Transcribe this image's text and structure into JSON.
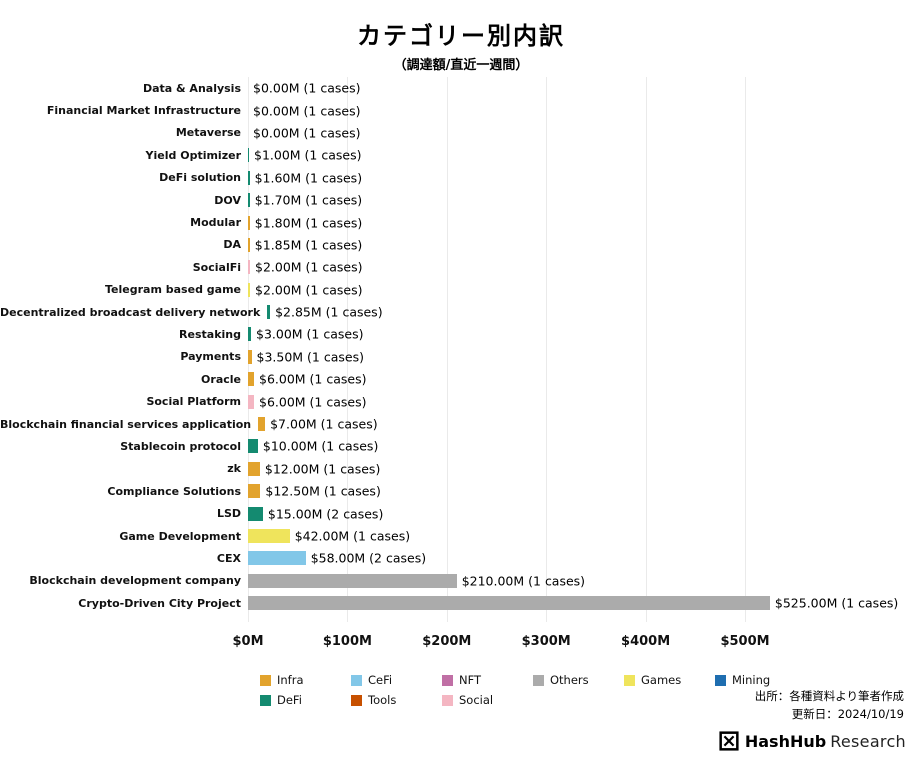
{
  "chart_data": {
    "type": "bar",
    "orientation": "horizontal",
    "title": "カテゴリー別内訳",
    "subtitle": "（調達額/直近一週間）",
    "value_unit": "$M",
    "xlim": [
      0,
      560
    ],
    "grid": true,
    "legend_position": "bottom",
    "xticks": [
      {
        "label": "$0M",
        "value": 0
      },
      {
        "label": "$100M",
        "value": 100
      },
      {
        "label": "$200M",
        "value": 200
      },
      {
        "label": "$300M",
        "value": 300
      },
      {
        "label": "$400M",
        "value": 400
      },
      {
        "label": "$500M",
        "value": 500
      }
    ],
    "rows": [
      {
        "category": "Data & Analysis",
        "value": 0.0,
        "cases": 1,
        "group": "Others",
        "label": "$0.00M (1 cases)"
      },
      {
        "category": "Financial Market Infrastructure",
        "value": 0.0,
        "cases": 1,
        "group": "Others",
        "label": "$0.00M (1 cases)"
      },
      {
        "category": "Metaverse",
        "value": 0.0,
        "cases": 1,
        "group": "Others",
        "label": "$0.00M (1 cases)"
      },
      {
        "category": "Yield Optimizer",
        "value": 1.0,
        "cases": 1,
        "group": "DeFi",
        "label": "$1.00M (1 cases)"
      },
      {
        "category": "DeFi solution",
        "value": 1.6,
        "cases": 1,
        "group": "DeFi",
        "label": "$1.60M (1 cases)"
      },
      {
        "category": "DOV",
        "value": 1.7,
        "cases": 1,
        "group": "DeFi",
        "label": "$1.70M (1 cases)"
      },
      {
        "category": "Modular",
        "value": 1.8,
        "cases": 1,
        "group": "Infra",
        "label": "$1.80M (1 cases)"
      },
      {
        "category": "DA",
        "value": 1.85,
        "cases": 1,
        "group": "Infra",
        "label": "$1.85M (1 cases)"
      },
      {
        "category": "SocialFi",
        "value": 2.0,
        "cases": 1,
        "group": "Social",
        "label": "$2.00M (1 cases)"
      },
      {
        "category": "Telegram based game",
        "value": 2.0,
        "cases": 1,
        "group": "Games",
        "label": "$2.00M (1 cases)"
      },
      {
        "category": "Decentralized broadcast delivery network",
        "value": 2.85,
        "cases": 1,
        "group": "DeFi",
        "label": "$2.85M (1 cases)"
      },
      {
        "category": "Restaking",
        "value": 3.0,
        "cases": 1,
        "group": "DeFi",
        "label": "$3.00M (1 cases)"
      },
      {
        "category": "Payments",
        "value": 3.5,
        "cases": 1,
        "group": "Infra",
        "label": "$3.50M (1 cases)"
      },
      {
        "category": "Oracle",
        "value": 6.0,
        "cases": 1,
        "group": "Infra",
        "label": "$6.00M (1 cases)"
      },
      {
        "category": "Social Platform",
        "value": 6.0,
        "cases": 1,
        "group": "Social",
        "label": "$6.00M (1 cases)"
      },
      {
        "category": "Blockchain financial services application",
        "value": 7.0,
        "cases": 1,
        "group": "Infra",
        "label": "$7.00M (1 cases)"
      },
      {
        "category": "Stablecoin protocol",
        "value": 10.0,
        "cases": 1,
        "group": "DeFi",
        "label": "$10.00M (1 cases)"
      },
      {
        "category": "zk",
        "value": 12.0,
        "cases": 1,
        "group": "Infra",
        "label": "$12.00M (1 cases)"
      },
      {
        "category": "Compliance Solutions",
        "value": 12.5,
        "cases": 1,
        "group": "Infra",
        "label": "$12.50M (1 cases)"
      },
      {
        "category": "LSD",
        "value": 15.0,
        "cases": 2,
        "group": "DeFi",
        "label": "$15.00M (2 cases)"
      },
      {
        "category": "Game Development",
        "value": 42.0,
        "cases": 1,
        "group": "Games",
        "label": "$42.00M (1 cases)"
      },
      {
        "category": "CEX",
        "value": 58.0,
        "cases": 2,
        "group": "CeFi",
        "label": "$58.00M (2 cases)"
      },
      {
        "category": "Blockchain development company",
        "value": 210.0,
        "cases": 1,
        "group": "Others",
        "label": "$210.00M (1 cases)"
      },
      {
        "category": "Crypto-Driven City Project",
        "value": 525.0,
        "cases": 1,
        "group": "Others",
        "label": "$525.00M (1 cases)"
      }
    ],
    "legend": [
      "Infra",
      "CeFi",
      "NFT",
      "Others",
      "Games",
      "Mining",
      "DeFi",
      "Tools",
      "Social"
    ],
    "palette": {
      "Infra": "#E2A32D",
      "CeFi": "#82C7E8",
      "NFT": "#C06FA5",
      "Others": "#ABABAB",
      "Games": "#EFE45C",
      "Mining": "#1F6EB0",
      "DeFi": "#148A70",
      "Tools": "#C75000",
      "Social": "#F4B6C2"
    }
  },
  "footer": {
    "source": "出所：各種資料より筆者作成",
    "updated": "更新日：2024/10/19"
  },
  "brand": {
    "name_bold": "HashHub",
    "name_light": "Research"
  }
}
